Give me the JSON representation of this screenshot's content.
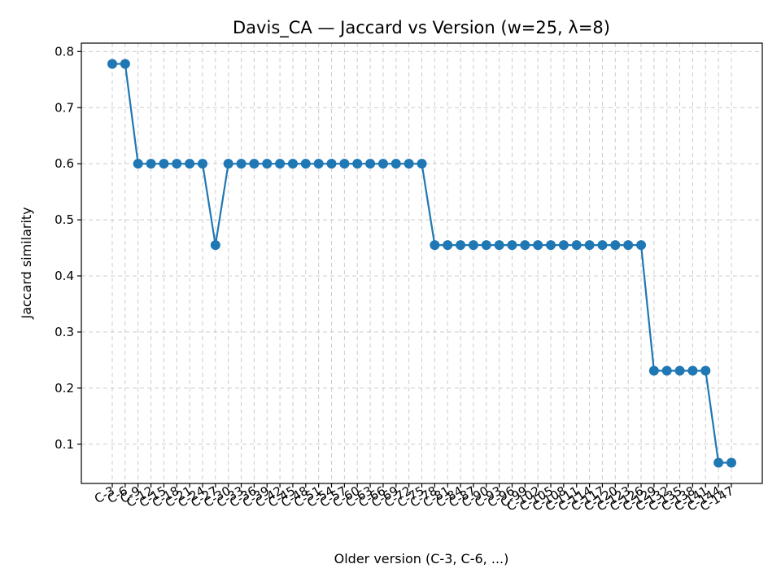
{
  "chart_data": {
    "type": "line",
    "title": "Davis_CA — Jaccard vs Version (w=25, λ=8)",
    "xlabel": "Older version (C-3, C-6, ...)",
    "ylabel": "Jaccard similarity",
    "ylim": [
      0.03,
      0.815
    ],
    "yticks": [
      "0.1",
      "0.2",
      "0.3",
      "0.4",
      "0.5",
      "0.6",
      "0.7",
      "0.8"
    ],
    "grid": true,
    "categories": [
      "C-3",
      "C-6",
      "C-9",
      "C-12",
      "C-15",
      "C-18",
      "C-21",
      "C-24",
      "C-27",
      "C-30",
      "C-33",
      "C-36",
      "C-39",
      "C-42",
      "C-45",
      "C-48",
      "C-51",
      "C-54",
      "C-57",
      "C-60",
      "C-63",
      "C-66",
      "C-69",
      "C-72",
      "C-75",
      "C-78",
      "C-81",
      "C-84",
      "C-87",
      "C-90",
      "C-93",
      "C-96",
      "C-99",
      "C-102",
      "C-105",
      "C-108",
      "C-111",
      "C-114",
      "C-117",
      "C-120",
      "C-123",
      "C-126",
      "C-129",
      "C-132",
      "C-135",
      "C-138",
      "C-141",
      "C-144",
      "C-147"
    ],
    "series": [
      {
        "color": "#1f77b4",
        "values": [
          0.778,
          0.778,
          0.6,
          0.6,
          0.6,
          0.6,
          0.6,
          0.6,
          0.455,
          0.6,
          0.6,
          0.6,
          0.6,
          0.6,
          0.6,
          0.6,
          0.6,
          0.6,
          0.6,
          0.6,
          0.6,
          0.6,
          0.6,
          0.6,
          0.6,
          0.455,
          0.455,
          0.455,
          0.455,
          0.455,
          0.455,
          0.455,
          0.455,
          0.455,
          0.455,
          0.455,
          0.455,
          0.455,
          0.455,
          0.455,
          0.455,
          0.455,
          0.231,
          0.231,
          0.231,
          0.231,
          0.231,
          0.067,
          0.067
        ]
      }
    ]
  }
}
